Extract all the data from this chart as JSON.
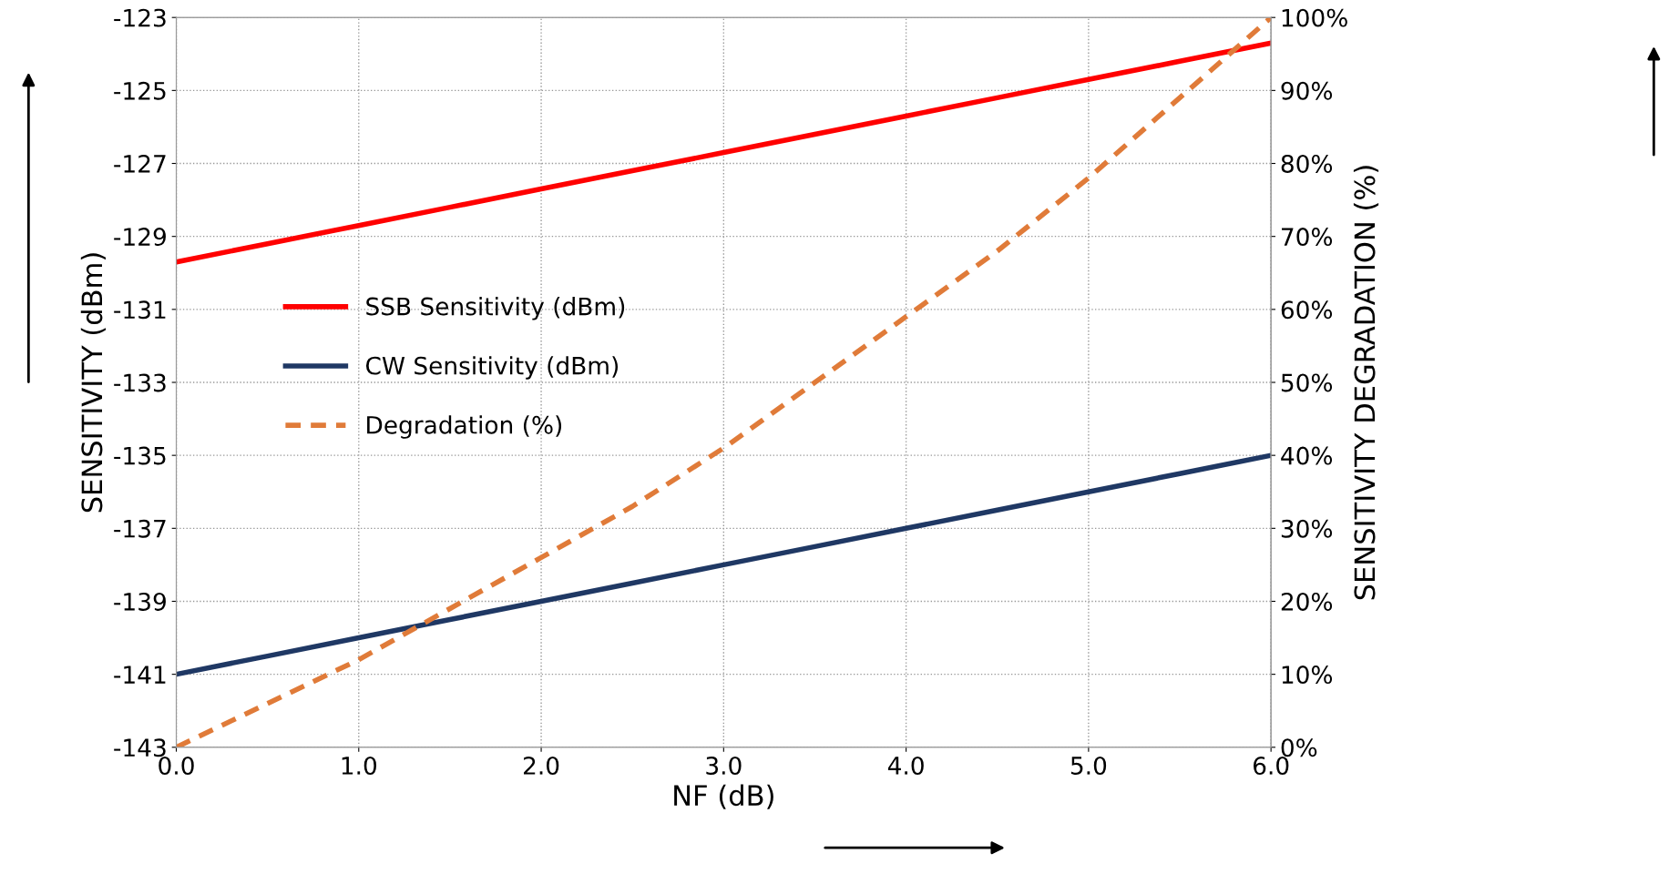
{
  "chart_data": {
    "type": "line",
    "xlabel": "NF (dB)",
    "ylabel": "SENSITIVITY (dBm)",
    "y2label": "SENSITIVITY DEGRADATION (%)",
    "x": [
      0,
      0.5,
      1,
      1.5,
      2,
      2.5,
      3,
      3.5,
      4,
      4.5,
      5,
      5.5,
      6
    ],
    "series": [
      {
        "name": "SSB Sensitivity (dBm)",
        "color": "#ff0000",
        "line_style": "solid",
        "values": [
          -129.7,
          -129.2,
          -128.7,
          -128.2,
          -127.7,
          -127.2,
          -126.7,
          -126.2,
          -125.7,
          -125.2,
          -124.7,
          -124.2,
          -123.7
        ]
      },
      {
        "name": "CW Sensitivity (dBm)",
        "color": "#1f3864",
        "line_style": "solid",
        "values": [
          -141,
          -140.5,
          -140,
          -139.5,
          -139,
          -138.5,
          -138,
          -137.5,
          -137,
          -136.5,
          -136,
          -135.5,
          -135
        ]
      },
      {
        "name": "Degradation (%)",
        "color": "#e07b39",
        "line_style": "dashed",
        "axis": "y2",
        "values": [
          0,
          6,
          12,
          19,
          26,
          33,
          41,
          50,
          59,
          68,
          78,
          89,
          100
        ]
      }
    ],
    "xlim": [
      0,
      6
    ],
    "xticks": [
      {
        "value": 0,
        "label": "0.0"
      },
      {
        "value": 1,
        "label": "1.0"
      },
      {
        "value": 2,
        "label": "2.0"
      },
      {
        "value": 3,
        "label": "3.0"
      },
      {
        "value": 4,
        "label": "4.0"
      },
      {
        "value": 5,
        "label": "5.0"
      },
      {
        "value": 6,
        "label": "6.0"
      }
    ],
    "ylim": [
      -143,
      -123
    ],
    "yticks": [
      -143,
      -141,
      -139,
      -137,
      -135,
      -133,
      -131,
      -129,
      -127,
      -125,
      -123
    ],
    "y2lim": [
      0,
      100
    ],
    "y2ticks": [
      {
        "value": 0,
        "label": "0%"
      },
      {
        "value": 10,
        "label": "10%"
      },
      {
        "value": 20,
        "label": "20%"
      },
      {
        "value": 30,
        "label": "30%"
      },
      {
        "value": 40,
        "label": "40%"
      },
      {
        "value": 50,
        "label": "50%"
      },
      {
        "value": 60,
        "label": "60%"
      },
      {
        "value": 70,
        "label": "70%"
      },
      {
        "value": 80,
        "label": "80%"
      },
      {
        "value": 90,
        "label": "90%"
      },
      {
        "value": 100,
        "label": "100%"
      }
    ],
    "grid": true,
    "legend": "center left",
    "marker": "none"
  }
}
